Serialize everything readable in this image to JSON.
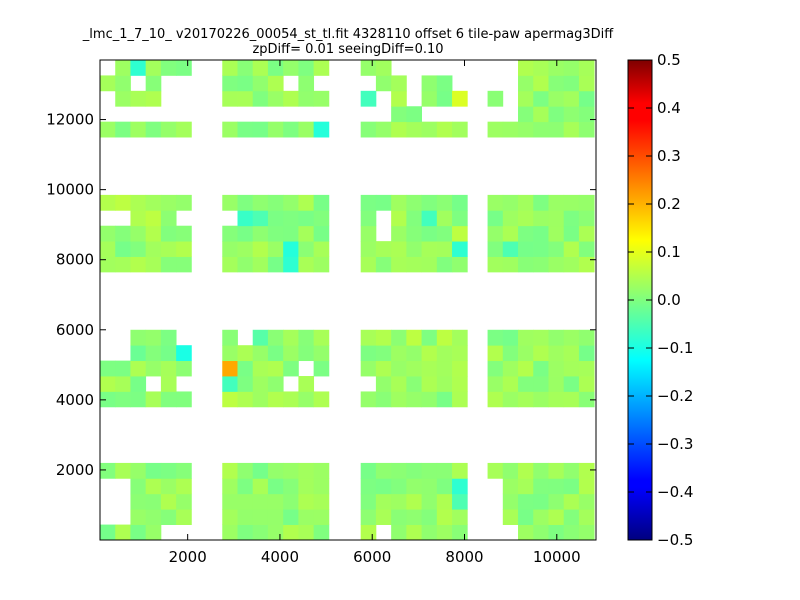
{
  "chart_data": {
    "type": "heatmap",
    "title_lines": [
      "_lmc_1_7_10_ v20170226_00054_st_tl.fit 4328110 offset 6 tile-paw apermag3Diff",
      "zpDiff= 0.01 seeingDiff=0.10"
    ],
    "xlabel": "",
    "ylabel": "",
    "xlim": [
      100,
      10850
    ],
    "ylim": [
      0,
      13700
    ],
    "x_ticks": [
      2000,
      4000,
      6000,
      8000,
      10000
    ],
    "y_ticks": [
      2000,
      4000,
      6000,
      8000,
      10000,
      12000
    ],
    "x_tick_labels": [
      "2000",
      "4000",
      "6000",
      "8000",
      "10000"
    ],
    "y_tick_labels": [
      "2000",
      "4000",
      "6000",
      "8000",
      "10000",
      "12000"
    ],
    "grid": false,
    "colormap": "jet",
    "color_range": [
      -0.5,
      0.5
    ],
    "colorbar_ticks": [
      0.5,
      0.4,
      0.3,
      0.2,
      0.1,
      0.0,
      -0.1,
      -0.2,
      -0.3,
      -0.4,
      -0.5
    ],
    "colorbar_tick_labels": [
      "0.5",
      "0.4",
      "0.3",
      "0.2",
      "0.1",
      "0.0",
      "−0.1",
      "−0.2",
      "−0.3",
      "−0.4",
      "−0.5"
    ],
    "cell_size": [
      330,
      440
    ],
    "column_groups": [
      {
        "x0": 100,
        "cols": 6
      },
      {
        "x0": 2750,
        "cols": 7
      },
      {
        "x0": 5750,
        "cols": 7
      },
      {
        "x0": 8500,
        "cols": 7
      }
    ],
    "row_groups": [
      {
        "y0": 0,
        "rows": 5
      },
      {
        "y0": 3800,
        "rows": 5
      },
      {
        "y0": 7650,
        "rows": 5
      },
      {
        "y0": 11500,
        "rows": 5
      }
    ],
    "default_value": 0.02,
    "missing_cells": [
      [
        0,
        1
      ],
      [
        0,
        2
      ],
      [
        0,
        3
      ],
      [
        1,
        1
      ],
      [
        1,
        2
      ],
      [
        1,
        3
      ],
      [
        4,
        0
      ],
      [
        5,
        0
      ],
      [
        14,
        0
      ],
      [
        20,
        0
      ],
      [
        20,
        1
      ],
      [
        20,
        2
      ],
      [
        20,
        3
      ],
      [
        21,
        0
      ],
      [
        0,
        9
      ],
      [
        0,
        8
      ],
      [
        1,
        9
      ],
      [
        1,
        8
      ],
      [
        5,
        9
      ],
      [
        3,
        6
      ],
      [
        5,
        6
      ],
      [
        7,
        9
      ],
      [
        10,
        6
      ],
      [
        12,
        6
      ],
      [
        13,
        6
      ],
      [
        11,
        7
      ],
      [
        0,
        13
      ],
      [
        1,
        13
      ],
      [
        5,
        13
      ],
      [
        6,
        13
      ],
      [
        14,
        13
      ],
      [
        14,
        12
      ],
      [
        0,
        17
      ],
      [
        0,
        19
      ],
      [
        2,
        18
      ],
      [
        4,
        17
      ],
      [
        4,
        18
      ],
      [
        5,
        17
      ],
      [
        5,
        18
      ],
      [
        7,
        16
      ],
      [
        8,
        16
      ],
      [
        11,
        16
      ],
      [
        12,
        16
      ],
      [
        13,
        16
      ],
      [
        14,
        16
      ],
      [
        14,
        17
      ],
      [
        17,
        16
      ],
      [
        18,
        16
      ],
      [
        19,
        16
      ],
      [
        0,
        16
      ],
      [
        1,
        16
      ],
      [
        2,
        16
      ],
      [
        3,
        16
      ],
      [
        4,
        16
      ],
      [
        5,
        16
      ],
      [
        6,
        16
      ],
      [
        8,
        16
      ],
      [
        9,
        16
      ],
      [
        10,
        16
      ],
      [
        10,
        18
      ],
      [
        12,
        18
      ],
      [
        13,
        18
      ],
      [
        16,
        18
      ],
      [
        19,
        18
      ],
      [
        16,
        17
      ],
      [
        20,
        19
      ],
      [
        16,
        19
      ],
      [
        15,
        19
      ],
      [
        19,
        19
      ],
      [
        18,
        19
      ],
      [
        17,
        19
      ],
      [
        21,
        19
      ],
      [
        20,
        18
      ],
      [
        21,
        18
      ],
      [
        21,
        17
      ],
      [
        21,
        16
      ],
      [
        20,
        16
      ]
    ],
    "special_cells": [
      {
        "col": 6,
        "row": 7,
        "value": 0.21
      },
      {
        "col": 6,
        "row": 6,
        "value": -0.06
      },
      {
        "col": 6,
        "row": 5,
        "value": 0.06
      },
      {
        "col": 5,
        "row": 8,
        "value": -0.1
      },
      {
        "col": 1,
        "row": 8,
        "value": 0.05
      },
      {
        "col": 2,
        "row": 8,
        "value": -0.02
      },
      {
        "col": 8,
        "row": 9,
        "value": -0.04
      },
      {
        "col": 2,
        "row": 19,
        "value": -0.08
      },
      {
        "col": 1,
        "row": 19,
        "value": 0.03
      },
      {
        "col": 12,
        "row": 15,
        "value": -0.09
      },
      {
        "col": 13,
        "row": 17,
        "value": -0.06
      },
      {
        "col": 20,
        "row": 18,
        "value": -0.06
      },
      {
        "col": 19,
        "row": 17,
        "value": 0.09
      },
      {
        "col": 19,
        "row": 18,
        "value": -0.03
      },
      {
        "col": 10,
        "row": 11,
        "value": -0.09
      },
      {
        "col": 10,
        "row": 10,
        "value": -0.08
      },
      {
        "col": 7,
        "row": 13,
        "value": -0.07
      },
      {
        "col": 8,
        "row": 13,
        "value": -0.05
      },
      {
        "col": 19,
        "row": 12,
        "value": 0.06
      },
      {
        "col": 19,
        "row": 11,
        "value": -0.08
      },
      {
        "col": 17,
        "row": 4,
        "value": 0.01
      },
      {
        "col": 19,
        "row": 3,
        "value": -0.08
      },
      {
        "col": 19,
        "row": 2,
        "value": -0.05
      },
      {
        "col": 16,
        "row": 9,
        "value": 0.06
      },
      {
        "col": 18,
        "row": 9,
        "value": 0.06
      },
      {
        "col": 0,
        "row": 13,
        "value": 0.05
      },
      {
        "col": 3,
        "row": 13,
        "value": 0.06
      },
      {
        "col": 17,
        "row": 13,
        "value": -0.06
      },
      {
        "col": 21,
        "row": 11,
        "value": -0.05
      },
      {
        "col": 22,
        "row": 7,
        "value": 0.05
      },
      {
        "col": 0,
        "row": 14,
        "value": 0.05
      },
      {
        "col": 1,
        "row": 14,
        "value": 0.06
      },
      {
        "col": 5,
        "row": 14,
        "value": 0.02
      },
      {
        "col": 2,
        "row": 15,
        "value": 0.03
      }
    ]
  }
}
